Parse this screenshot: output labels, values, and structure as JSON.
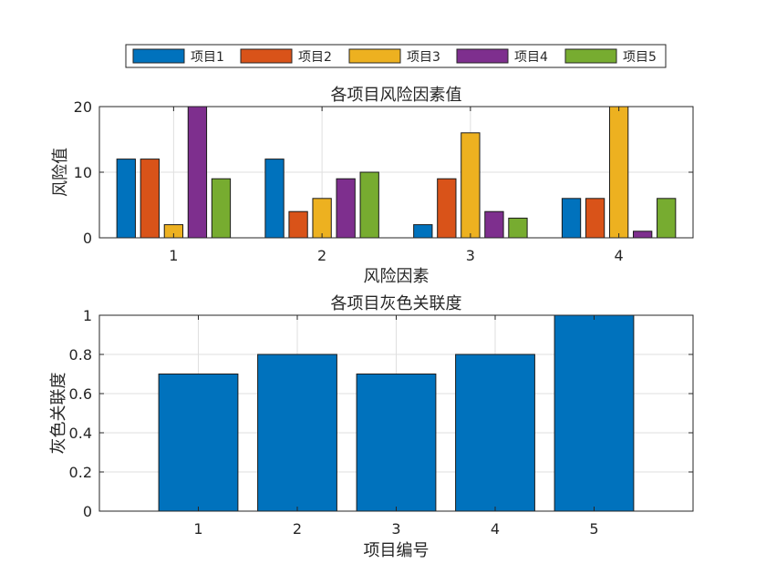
{
  "legend": {
    "placement": "top-center",
    "entries": [
      "项目1",
      "项目2",
      "项目3",
      "项目4",
      "项目5"
    ],
    "colors": [
      "#0072BD",
      "#D95319",
      "#EDB120",
      "#7E2F8E",
      "#77AC30"
    ]
  },
  "chart_data": [
    {
      "type": "bar",
      "title": "各项目风险因素值",
      "xlabel": "风险因素",
      "ylabel": "风险值",
      "categories": [
        "1",
        "2",
        "3",
        "4"
      ],
      "ylim": [
        0,
        20
      ],
      "yticks": [
        "0",
        "10",
        "20"
      ],
      "grid": true,
      "series": [
        {
          "name": "项目1",
          "color": "#0072BD",
          "values": [
            12,
            12,
            2,
            6
          ]
        },
        {
          "name": "项目2",
          "color": "#D95319",
          "values": [
            12,
            4,
            9,
            6
          ]
        },
        {
          "name": "项目3",
          "color": "#EDB120",
          "values": [
            2,
            6,
            16,
            20
          ]
        },
        {
          "name": "项目4",
          "color": "#7E2F8E",
          "values": [
            20,
            9,
            4,
            1
          ]
        },
        {
          "name": "项目5",
          "color": "#77AC30",
          "values": [
            9,
            10,
            3,
            6
          ]
        }
      ]
    },
    {
      "type": "bar",
      "title": "各项目灰色关联度",
      "xlabel": "项目编号",
      "ylabel": "灰色关联度",
      "categories": [
        "1",
        "2",
        "3",
        "4",
        "5"
      ],
      "values": [
        0.7,
        0.8,
        0.7,
        0.8,
        1.0
      ],
      "ylim": [
        0,
        1
      ],
      "yticks": [
        "0",
        "0.2",
        "0.4",
        "0.6",
        "0.8",
        "1"
      ],
      "grid": true,
      "color": "#0072BD"
    }
  ]
}
